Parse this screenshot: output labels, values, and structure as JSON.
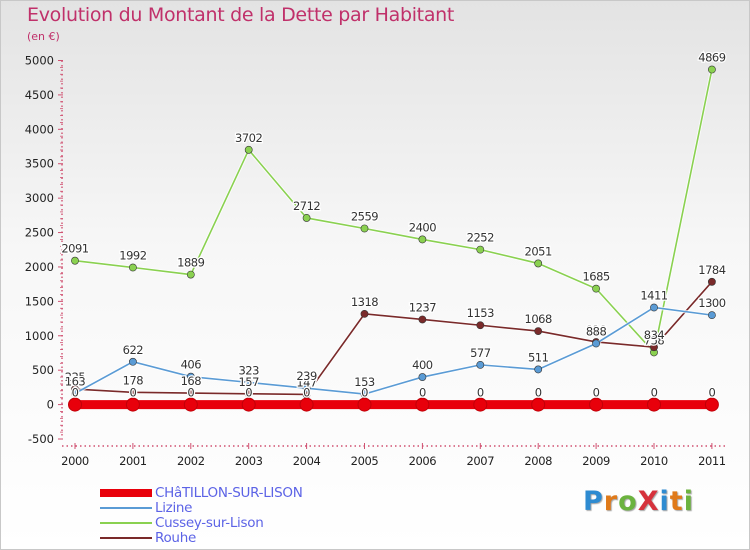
{
  "title": "Evolution du Montant de la Dette par Habitant",
  "subtitle": "(en €)",
  "logo": {
    "text": "ProXiti",
    "letter_colors": [
      "#2e8bd1",
      "#e07a1a",
      "#6cb33f",
      "#d6323c",
      "#2e8bd1",
      "#e07a1a",
      "#6cb33f"
    ]
  },
  "chart_data": {
    "type": "line",
    "x": [
      "2000",
      "2001",
      "2002",
      "2003",
      "2004",
      "2005",
      "2006",
      "2007",
      "2008",
      "2009",
      "2010",
      "2011"
    ],
    "ylim": [
      -500,
      5000
    ],
    "yticks": [
      "5000",
      "4500",
      "4000",
      "3500",
      "3000",
      "2500",
      "2000",
      "1500",
      "1000",
      "500",
      "0",
      "-500"
    ],
    "grid": false,
    "legend_position": "bottom-left",
    "series": [
      {
        "name": "CHâTILLON-SUR-LISON",
        "color": "#e8000b",
        "values": [
          0,
          0,
          0,
          0,
          0,
          0,
          0,
          0,
          0,
          0,
          0,
          0
        ],
        "labels": [
          "0",
          "0",
          "0",
          "0",
          "0",
          "0",
          "0",
          "0",
          "0",
          "0",
          "0",
          "0"
        ]
      },
      {
        "name": "Lizine",
        "color": "#5a9bd5",
        "values": [
          163,
          622,
          406,
          323,
          239,
          153,
          400,
          577,
          511,
          888,
          1411,
          1300
        ],
        "labels": [
          "163",
          "622",
          "406",
          "323",
          "239",
          "153",
          "400",
          "577",
          "511",
          "888",
          "1411",
          "1300"
        ]
      },
      {
        "name": "Cussey-sur-Lison",
        "color": "#8ad150",
        "values": [
          2091,
          1992,
          1889,
          3702,
          2712,
          2559,
          2400,
          2252,
          2051,
          1685,
          758,
          4869
        ],
        "labels": [
          "2091",
          "1992",
          "1889",
          "3702",
          "2712",
          "2559",
          "2400",
          "2252",
          "2051",
          "1685",
          "758",
          "4869"
        ]
      },
      {
        "name": "Rouhe",
        "color": "#7a2a2a",
        "values": [
          225,
          178,
          168,
          157,
          147,
          1318,
          1237,
          1153,
          1068,
          910,
          834,
          1784
        ],
        "labels": [
          "225",
          "178",
          "168",
          "157",
          "147",
          "1318",
          "1237",
          "1153",
          "1068",
          "910",
          "834",
          "1784"
        ]
      }
    ]
  }
}
